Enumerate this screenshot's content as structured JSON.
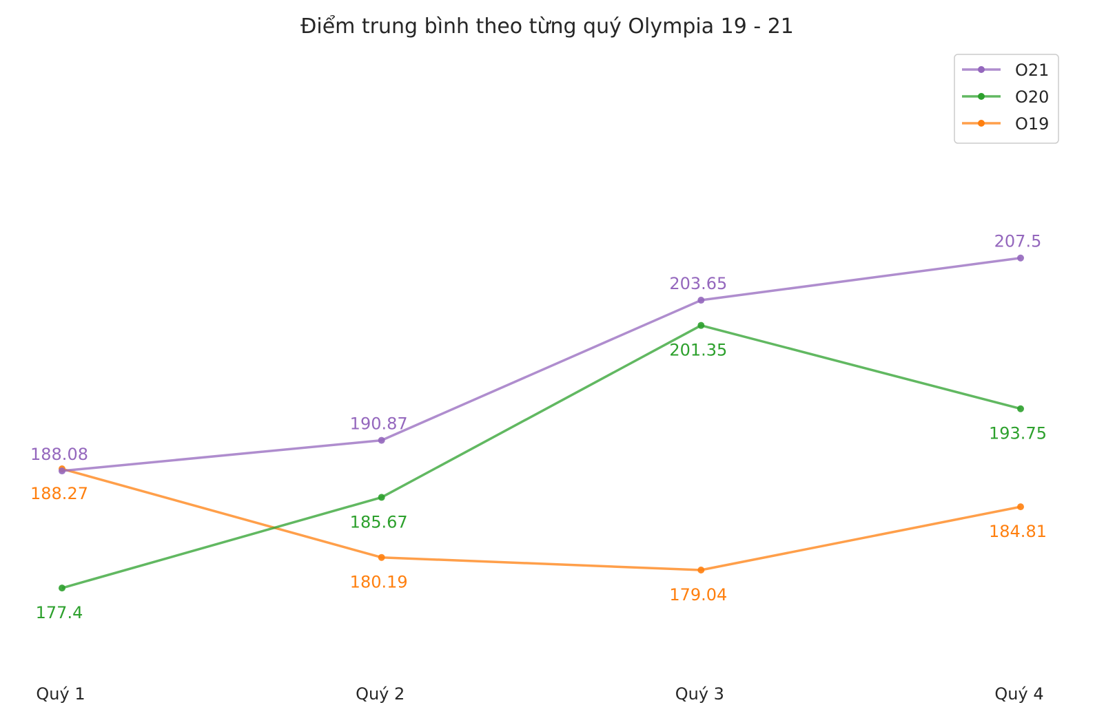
{
  "chart_data": {
    "type": "line",
    "title": "Điểm trung bình theo từng quý Olympia 19 - 21",
    "xlabel": "",
    "ylabel": "",
    "categories": [
      "Quý 1",
      "Quý 2",
      "Quý 3",
      "Quý 4"
    ],
    "ylim": [
      170,
      225
    ],
    "grid": false,
    "legend_position": "top-right",
    "series": [
      {
        "name": "O21",
        "color": "#9467bd",
        "values": [
          188.08,
          190.87,
          203.65,
          207.5
        ],
        "labels": [
          "188.08",
          "190.87",
          "203.65",
          "207.5"
        ],
        "label_side": "above"
      },
      {
        "name": "O20",
        "color": "#2ca02c",
        "values": [
          177.4,
          185.67,
          201.35,
          193.75
        ],
        "labels": [
          "177.4",
          "185.67",
          "201.35",
          "193.75"
        ],
        "label_side": "below"
      },
      {
        "name": "O19",
        "color": "#ff7f0e",
        "values": [
          188.27,
          180.19,
          179.04,
          184.81
        ],
        "labels": [
          "188.27",
          "180.19",
          "179.04",
          "184.81"
        ],
        "label_side": "below"
      }
    ]
  }
}
